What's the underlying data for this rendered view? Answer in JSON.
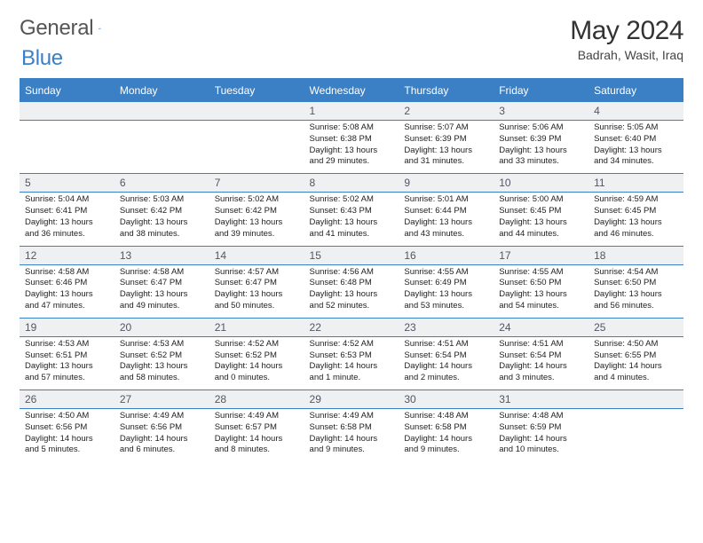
{
  "brand": {
    "text1": "General",
    "text2": "Blue"
  },
  "title": "May 2024",
  "location": "Badrah, Wasit, Iraq",
  "colors": {
    "accent": "#3b7fc4",
    "daybg": "#eef0f2",
    "text": "#222222",
    "muted": "#555555"
  },
  "day_headers": [
    "Sunday",
    "Monday",
    "Tuesday",
    "Wednesday",
    "Thursday",
    "Friday",
    "Saturday"
  ],
  "weeks": [
    [
      {
        "n": "",
        "sun": "",
        "set": "",
        "d1": "",
        "d2": ""
      },
      {
        "n": "",
        "sun": "",
        "set": "",
        "d1": "",
        "d2": ""
      },
      {
        "n": "",
        "sun": "",
        "set": "",
        "d1": "",
        "d2": ""
      },
      {
        "n": "1",
        "sun": "Sunrise: 5:08 AM",
        "set": "Sunset: 6:38 PM",
        "d1": "Daylight: 13 hours",
        "d2": "and 29 minutes."
      },
      {
        "n": "2",
        "sun": "Sunrise: 5:07 AM",
        "set": "Sunset: 6:39 PM",
        "d1": "Daylight: 13 hours",
        "d2": "and 31 minutes."
      },
      {
        "n": "3",
        "sun": "Sunrise: 5:06 AM",
        "set": "Sunset: 6:39 PM",
        "d1": "Daylight: 13 hours",
        "d2": "and 33 minutes."
      },
      {
        "n": "4",
        "sun": "Sunrise: 5:05 AM",
        "set": "Sunset: 6:40 PM",
        "d1": "Daylight: 13 hours",
        "d2": "and 34 minutes."
      }
    ],
    [
      {
        "n": "5",
        "sun": "Sunrise: 5:04 AM",
        "set": "Sunset: 6:41 PM",
        "d1": "Daylight: 13 hours",
        "d2": "and 36 minutes."
      },
      {
        "n": "6",
        "sun": "Sunrise: 5:03 AM",
        "set": "Sunset: 6:42 PM",
        "d1": "Daylight: 13 hours",
        "d2": "and 38 minutes."
      },
      {
        "n": "7",
        "sun": "Sunrise: 5:02 AM",
        "set": "Sunset: 6:42 PM",
        "d1": "Daylight: 13 hours",
        "d2": "and 39 minutes."
      },
      {
        "n": "8",
        "sun": "Sunrise: 5:02 AM",
        "set": "Sunset: 6:43 PM",
        "d1": "Daylight: 13 hours",
        "d2": "and 41 minutes."
      },
      {
        "n": "9",
        "sun": "Sunrise: 5:01 AM",
        "set": "Sunset: 6:44 PM",
        "d1": "Daylight: 13 hours",
        "d2": "and 43 minutes."
      },
      {
        "n": "10",
        "sun": "Sunrise: 5:00 AM",
        "set": "Sunset: 6:45 PM",
        "d1": "Daylight: 13 hours",
        "d2": "and 44 minutes."
      },
      {
        "n": "11",
        "sun": "Sunrise: 4:59 AM",
        "set": "Sunset: 6:45 PM",
        "d1": "Daylight: 13 hours",
        "d2": "and 46 minutes."
      }
    ],
    [
      {
        "n": "12",
        "sun": "Sunrise: 4:58 AM",
        "set": "Sunset: 6:46 PM",
        "d1": "Daylight: 13 hours",
        "d2": "and 47 minutes."
      },
      {
        "n": "13",
        "sun": "Sunrise: 4:58 AM",
        "set": "Sunset: 6:47 PM",
        "d1": "Daylight: 13 hours",
        "d2": "and 49 minutes."
      },
      {
        "n": "14",
        "sun": "Sunrise: 4:57 AM",
        "set": "Sunset: 6:47 PM",
        "d1": "Daylight: 13 hours",
        "d2": "and 50 minutes."
      },
      {
        "n": "15",
        "sun": "Sunrise: 4:56 AM",
        "set": "Sunset: 6:48 PM",
        "d1": "Daylight: 13 hours",
        "d2": "and 52 minutes."
      },
      {
        "n": "16",
        "sun": "Sunrise: 4:55 AM",
        "set": "Sunset: 6:49 PM",
        "d1": "Daylight: 13 hours",
        "d2": "and 53 minutes."
      },
      {
        "n": "17",
        "sun": "Sunrise: 4:55 AM",
        "set": "Sunset: 6:50 PM",
        "d1": "Daylight: 13 hours",
        "d2": "and 54 minutes."
      },
      {
        "n": "18",
        "sun": "Sunrise: 4:54 AM",
        "set": "Sunset: 6:50 PM",
        "d1": "Daylight: 13 hours",
        "d2": "and 56 minutes."
      }
    ],
    [
      {
        "n": "19",
        "sun": "Sunrise: 4:53 AM",
        "set": "Sunset: 6:51 PM",
        "d1": "Daylight: 13 hours",
        "d2": "and 57 minutes."
      },
      {
        "n": "20",
        "sun": "Sunrise: 4:53 AM",
        "set": "Sunset: 6:52 PM",
        "d1": "Daylight: 13 hours",
        "d2": "and 58 minutes."
      },
      {
        "n": "21",
        "sun": "Sunrise: 4:52 AM",
        "set": "Sunset: 6:52 PM",
        "d1": "Daylight: 14 hours",
        "d2": "and 0 minutes."
      },
      {
        "n": "22",
        "sun": "Sunrise: 4:52 AM",
        "set": "Sunset: 6:53 PM",
        "d1": "Daylight: 14 hours",
        "d2": "and 1 minute."
      },
      {
        "n": "23",
        "sun": "Sunrise: 4:51 AM",
        "set": "Sunset: 6:54 PM",
        "d1": "Daylight: 14 hours",
        "d2": "and 2 minutes."
      },
      {
        "n": "24",
        "sun": "Sunrise: 4:51 AM",
        "set": "Sunset: 6:54 PM",
        "d1": "Daylight: 14 hours",
        "d2": "and 3 minutes."
      },
      {
        "n": "25",
        "sun": "Sunrise: 4:50 AM",
        "set": "Sunset: 6:55 PM",
        "d1": "Daylight: 14 hours",
        "d2": "and 4 minutes."
      }
    ],
    [
      {
        "n": "26",
        "sun": "Sunrise: 4:50 AM",
        "set": "Sunset: 6:56 PM",
        "d1": "Daylight: 14 hours",
        "d2": "and 5 minutes."
      },
      {
        "n": "27",
        "sun": "Sunrise: 4:49 AM",
        "set": "Sunset: 6:56 PM",
        "d1": "Daylight: 14 hours",
        "d2": "and 6 minutes."
      },
      {
        "n": "28",
        "sun": "Sunrise: 4:49 AM",
        "set": "Sunset: 6:57 PM",
        "d1": "Daylight: 14 hours",
        "d2": "and 8 minutes."
      },
      {
        "n": "29",
        "sun": "Sunrise: 4:49 AM",
        "set": "Sunset: 6:58 PM",
        "d1": "Daylight: 14 hours",
        "d2": "and 9 minutes."
      },
      {
        "n": "30",
        "sun": "Sunrise: 4:48 AM",
        "set": "Sunset: 6:58 PM",
        "d1": "Daylight: 14 hours",
        "d2": "and 9 minutes."
      },
      {
        "n": "31",
        "sun": "Sunrise: 4:48 AM",
        "set": "Sunset: 6:59 PM",
        "d1": "Daylight: 14 hours",
        "d2": "and 10 minutes."
      },
      {
        "n": "",
        "sun": "",
        "set": "",
        "d1": "",
        "d2": ""
      }
    ]
  ]
}
